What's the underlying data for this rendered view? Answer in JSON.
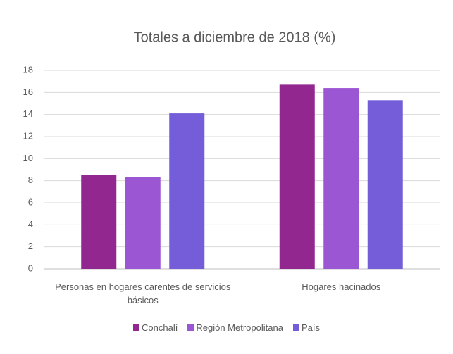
{
  "chart_data": {
    "type": "bar",
    "title": "Totales a diciembre de 2018 (%)",
    "categories": [
      "Personas en hogares carentes de servicios básicos",
      "Hogares hacinados"
    ],
    "series": [
      {
        "name": "Conchalí",
        "color": "#92278f",
        "values": [
          8.5,
          16.7
        ]
      },
      {
        "name": "Región Metropolitana",
        "color": "#9b57d3",
        "values": [
          8.3,
          16.4
        ]
      },
      {
        "name": "País",
        "color": "#755dd9",
        "values": [
          14.1,
          15.3
        ]
      }
    ],
    "ylim": [
      0,
      18
    ],
    "yticks": [
      0,
      2,
      4,
      6,
      8,
      10,
      12,
      14,
      16,
      18
    ],
    "grid": true,
    "legend": "bottom"
  }
}
